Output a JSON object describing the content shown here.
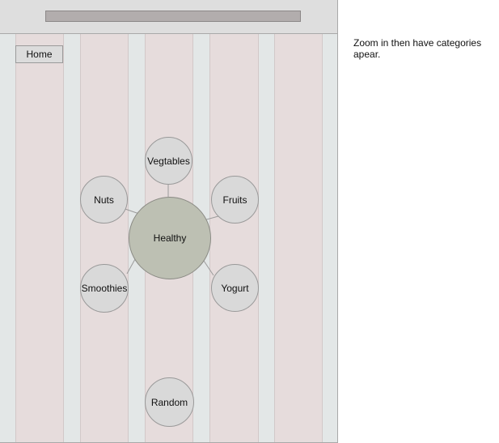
{
  "navigation": {
    "home_label": "Home"
  },
  "mindmap": {
    "center_label": "Healthy",
    "categories": {
      "vegtables": "Vegtables",
      "nuts": "Nuts",
      "fruits": "Fruits",
      "smoothies": "Smoothies",
      "yogurt": "Yogurt",
      "random": "Random"
    }
  },
  "annotation": {
    "note": "Zoom in then have categories apear."
  },
  "colors": {
    "column_fill": "#e6dcdc",
    "gutter_fill": "#e3e7e7",
    "center_node_fill": "#bdc0b3",
    "category_node_fill": "#d9d9d9"
  }
}
